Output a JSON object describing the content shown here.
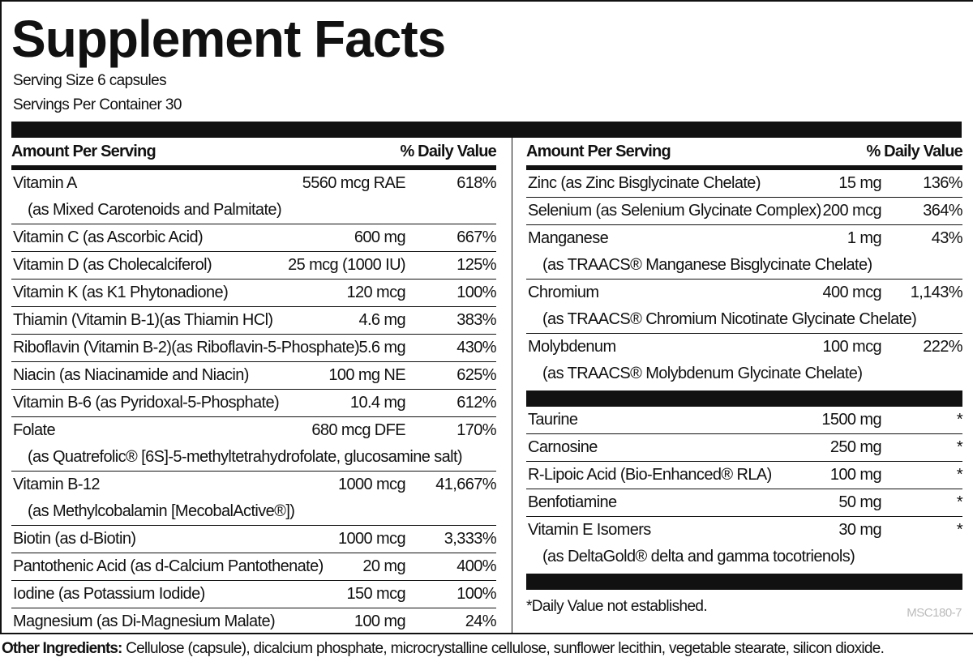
{
  "title": "Supplement Facts",
  "serving_size": "Serving Size 6 capsules",
  "servings_per_container": "Servings Per Container 30",
  "header": {
    "amount": "Amount Per Serving",
    "dv": "% Daily Value"
  },
  "left_rows": [
    {
      "name": "Vitamin A",
      "amount": "5560 mcg RAE",
      "dv": "618%",
      "sub": "(as Mixed Carotenoids and Palmitate)"
    },
    {
      "name": "Vitamin C (as Ascorbic Acid)",
      "amount": "600 mg",
      "dv": "667%"
    },
    {
      "name": "Vitamin D (as Cholecalciferol)",
      "amount": "25 mcg (1000 IU)",
      "dv": "125%"
    },
    {
      "name": "Vitamin K (as K1 Phytonadione)",
      "amount": "120 mcg",
      "dv": "100%"
    },
    {
      "name": "Thiamin (Vitamin B-1)(as Thiamin HCl)",
      "amount": "4.6 mg",
      "dv": "383%"
    },
    {
      "name": "Riboflavin (Vitamin B-2)(as Riboflavin-5-Phosphate)",
      "amount": "5.6 mg",
      "dv": "430%"
    },
    {
      "name": "Niacin (as Niacinamide and Niacin)",
      "amount": "100 mg NE",
      "dv": "625%"
    },
    {
      "name": "Vitamin B-6 (as Pyridoxal-5-Phosphate)",
      "amount": "10.4 mg",
      "dv": "612%"
    },
    {
      "name": "Folate",
      "amount": "680 mcg DFE",
      "dv": "170%",
      "sub": "(as Quatrefolic® [6S]-5-methyltetrahydrofolate, glucosamine salt)"
    },
    {
      "name": "Vitamin B-12",
      "amount": "1000 mcg",
      "dv": "41,667%",
      "sub": "(as Methylcobalamin [MecobalActive®])"
    },
    {
      "name": "Biotin (as d-Biotin)",
      "amount": "1000 mcg",
      "dv": "3,333%"
    },
    {
      "name": "Pantothenic Acid (as d-Calcium Pantothenate)",
      "amount": "20 mg",
      "dv": "400%"
    },
    {
      "name": "Iodine (as Potassium Iodide)",
      "amount": "150 mcg",
      "dv": "100%"
    },
    {
      "name": "Magnesium (as Di-Magnesium Malate)",
      "amount": "100 mg",
      "dv": "24%"
    }
  ],
  "right_rows": [
    {
      "name": "Zinc (as Zinc Bisglycinate Chelate)",
      "amount": "15 mg",
      "dv": "136%"
    },
    {
      "name": "Selenium (as Selenium Glycinate Complex)",
      "amount": "200 mcg",
      "dv": "364%"
    },
    {
      "name": "Manganese",
      "amount": "1 mg",
      "dv": "43%",
      "sub": "(as TRAACS® Manganese Bisglycinate Chelate)"
    },
    {
      "name": "Chromium",
      "amount": "400 mcg",
      "dv": "1,143%",
      "sub": "(as TRAACS® Chromium Nicotinate Glycinate Chelate)"
    },
    {
      "name": "Molybdenum",
      "amount": "100 mcg",
      "dv": "222%",
      "sub": "(as TRAACS® Molybdenum Glycinate Chelate)"
    }
  ],
  "right_rows_2": [
    {
      "name": "Taurine",
      "amount": "1500 mg",
      "dv": "*"
    },
    {
      "name": "Carnosine",
      "amount": "250 mg",
      "dv": "*"
    },
    {
      "name": "R-Lipoic Acid (Bio-Enhanced® RLA)",
      "amount": "100 mg",
      "dv": "*"
    },
    {
      "name": "Benfotiamine",
      "amount": "50 mg",
      "dv": "*"
    },
    {
      "name": "Vitamin E Isomers",
      "amount": "30 mg",
      "dv": "*",
      "sub": "(as DeltaGold® delta and gamma tocotrienols)"
    }
  ],
  "footnote": "*Daily Value not established.",
  "product_code": "MSC180-7",
  "other_ingredients": {
    "label": "Other Ingredients:",
    "text": " Cellulose (capsule), dicalcium phosphate, microcrystalline cellulose, sunflower lecithin, vegetable stearate, silicon dioxide."
  }
}
